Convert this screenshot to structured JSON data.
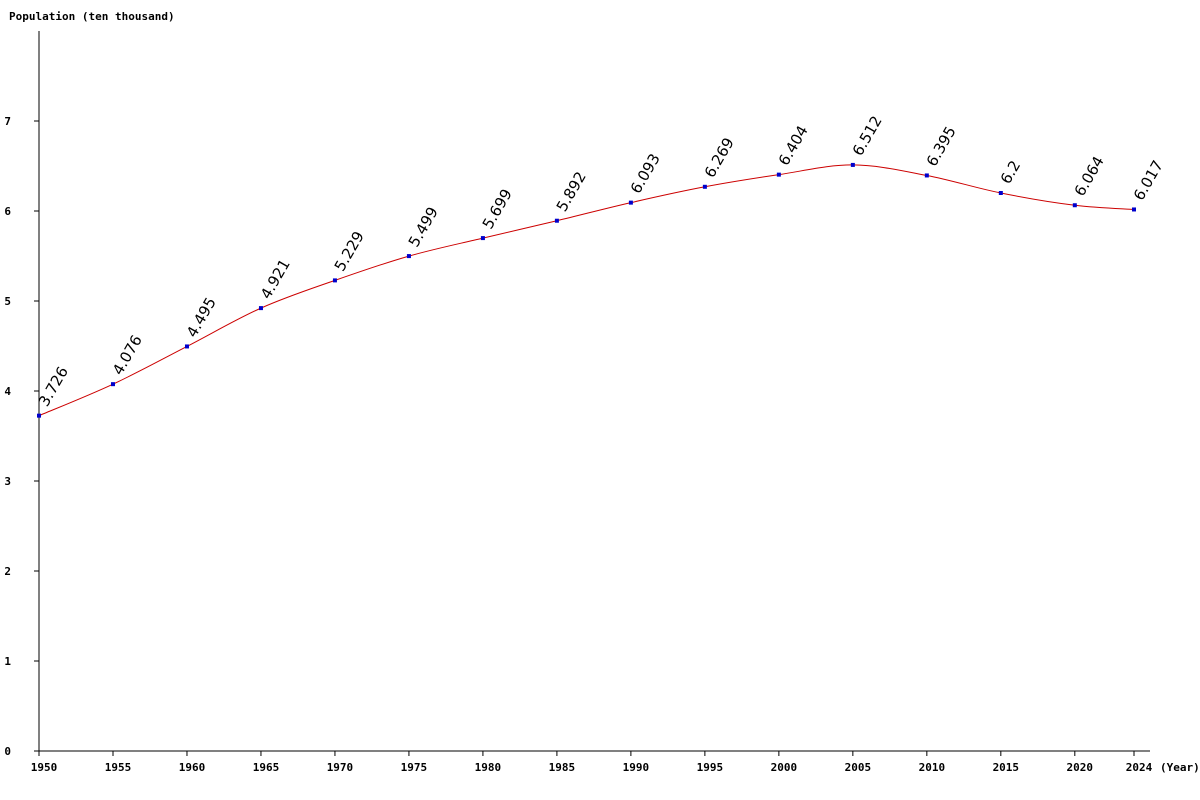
{
  "chart_data": {
    "type": "line",
    "ylabel": "Population (ten thousand)",
    "xlabel": "(Year)",
    "x": [
      1950,
      1955,
      1960,
      1965,
      1970,
      1975,
      1980,
      1985,
      1990,
      1995,
      2000,
      2005,
      2010,
      2015,
      2020,
      2024
    ],
    "x_tick_labels": [
      "1950",
      "1955",
      "1960",
      "1965",
      "1970",
      "1975",
      "1980",
      "1985",
      "1990",
      "1995",
      "2000",
      "2005",
      "2010",
      "2015",
      "2020",
      "2024"
    ],
    "values": [
      3.726,
      4.076,
      4.495,
      4.921,
      5.229,
      5.499,
      5.699,
      5.892,
      6.093,
      6.269,
      6.404,
      6.512,
      6.395,
      6.2,
      6.064,
      6.017
    ],
    "data_labels": [
      "3.726",
      "4.076",
      "4.495",
      "4.921",
      "5.229",
      "5.499",
      "5.699",
      "5.892",
      "6.093",
      "6.269",
      "6.404",
      "6.512",
      "6.395",
      "6.2",
      "6.064",
      "6.017"
    ],
    "y_ticks": [
      0,
      1,
      2,
      3,
      4,
      5,
      6,
      7
    ],
    "y_tick_labels": [
      "0",
      "1",
      "2",
      "3",
      "4",
      "5",
      "6",
      "7"
    ],
    "ylim": [
      0,
      8
    ],
    "xlim": [
      1950,
      2024
    ],
    "grid": false,
    "line_color": "#cc0000",
    "marker_color": "#0000cc"
  }
}
